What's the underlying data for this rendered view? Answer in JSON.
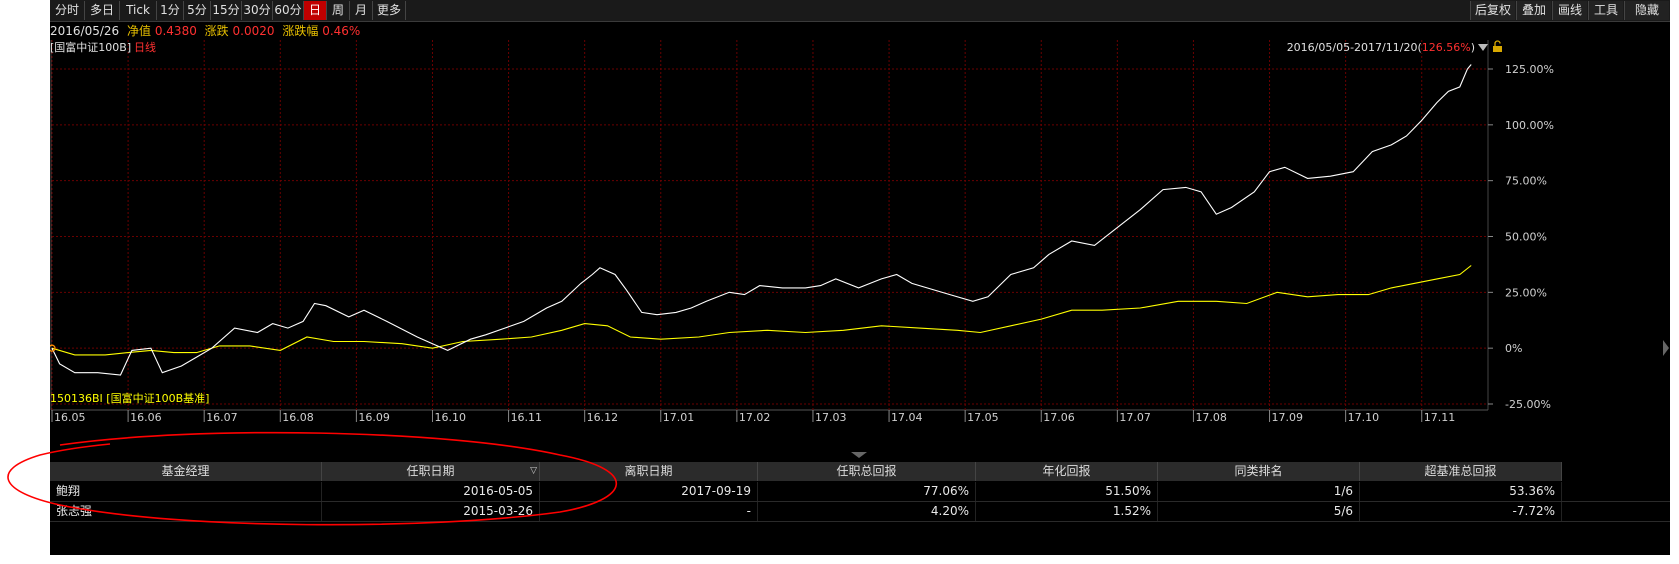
{
  "toolbar": {
    "left": [
      "分时",
      "多日",
      "Tick",
      "1分",
      "5分",
      "15分",
      "30分",
      "60分",
      "日",
      "周",
      "月",
      "更多"
    ],
    "active": "日",
    "right": [
      "后复权",
      "叠加",
      "画线",
      "工具",
      "隐藏"
    ]
  },
  "quote": {
    "date": "2016/05/26",
    "nav_label": "净值",
    "nav_value": "0.4380",
    "chg_label": "涨跌",
    "chg_value": "0.0020",
    "pct_label": "涨跌幅",
    "pct_value": "0.46%"
  },
  "chart_header": {
    "name": "[国富中证100B]",
    "period": "日线",
    "range_label": "2016/05/05-2017/11/20(",
    "range_value": "126.56%",
    "range_close": ")"
  },
  "colors": {
    "fund": "#ffffff",
    "benchmark": "#ffff00",
    "grid": "#6a0000",
    "up": "#ff3030"
  },
  "chart_data": {
    "type": "line",
    "ylim": [
      -25,
      125
    ],
    "yticks": [
      "125.00%",
      "100.00%",
      "75.00%",
      "50.00%",
      "25.00%",
      "0%",
      "-25.00%"
    ],
    "ytick_values": [
      125,
      100,
      75,
      50,
      25,
      0,
      -25
    ],
    "xticks": [
      "16.05",
      "16.06",
      "16.07",
      "16.08",
      "16.09",
      "16.10",
      "16.11",
      "16.12",
      "17.01",
      "17.02",
      "17.03",
      "17.04",
      "17.05",
      "17.06",
      "17.07",
      "17.08",
      "17.09",
      "17.10",
      "17.11"
    ],
    "xlim": [
      0,
      18.7
    ],
    "series": [
      {
        "name": "",
        "color": "#ffffff",
        "points": [
          [
            0,
            0
          ],
          [
            0.1,
            -7
          ],
          [
            0.3,
            -11
          ],
          [
            0.6,
            -11
          ],
          [
            0.9,
            -12
          ],
          [
            1.05,
            -1
          ],
          [
            1.3,
            0
          ],
          [
            1.45,
            -11
          ],
          [
            1.7,
            -8
          ],
          [
            1.9,
            -4
          ],
          [
            2.1,
            0
          ],
          [
            2.4,
            9
          ],
          [
            2.7,
            7
          ],
          [
            2.9,
            11
          ],
          [
            3.1,
            9
          ],
          [
            3.3,
            12
          ],
          [
            3.45,
            20
          ],
          [
            3.6,
            19
          ],
          [
            3.9,
            14
          ],
          [
            4.1,
            17
          ],
          [
            4.4,
            12
          ],
          [
            4.8,
            5
          ],
          [
            5.0,
            2
          ],
          [
            5.2,
            -1
          ],
          [
            5.5,
            4
          ],
          [
            5.7,
            6
          ],
          [
            5.95,
            9
          ],
          [
            6.2,
            12
          ],
          [
            6.5,
            18
          ],
          [
            6.7,
            21
          ],
          [
            6.95,
            29
          ],
          [
            7.1,
            33
          ],
          [
            7.2,
            36
          ],
          [
            7.4,
            33
          ],
          [
            7.55,
            26
          ],
          [
            7.75,
            16
          ],
          [
            7.95,
            15
          ],
          [
            8.2,
            16
          ],
          [
            8.4,
            18
          ],
          [
            8.6,
            21
          ],
          [
            8.9,
            25
          ],
          [
            9.1,
            24
          ],
          [
            9.3,
            28
          ],
          [
            9.6,
            27
          ],
          [
            9.9,
            27
          ],
          [
            10.1,
            28
          ],
          [
            10.3,
            31
          ],
          [
            10.6,
            27
          ],
          [
            10.9,
            31
          ],
          [
            11.1,
            33
          ],
          [
            11.3,
            29
          ],
          [
            11.6,
            26
          ],
          [
            11.8,
            24
          ],
          [
            12.1,
            21
          ],
          [
            12.3,
            23
          ],
          [
            12.6,
            33
          ],
          [
            12.9,
            36
          ],
          [
            13.1,
            42
          ],
          [
            13.4,
            48
          ],
          [
            13.7,
            46
          ],
          [
            14.0,
            54
          ],
          [
            14.3,
            62
          ],
          [
            14.6,
            71
          ],
          [
            14.9,
            72
          ],
          [
            15.1,
            70
          ],
          [
            15.3,
            60
          ],
          [
            15.5,
            63
          ],
          [
            15.8,
            70
          ],
          [
            16.0,
            79
          ],
          [
            16.2,
            81
          ],
          [
            16.5,
            76
          ],
          [
            16.8,
            77
          ],
          [
            17.1,
            79
          ],
          [
            17.35,
            88
          ],
          [
            17.6,
            91
          ],
          [
            17.8,
            95
          ],
          [
            18.0,
            102
          ],
          [
            18.2,
            110
          ],
          [
            18.35,
            115
          ],
          [
            18.5,
            117
          ],
          [
            18.6,
            125
          ],
          [
            18.65,
            127
          ]
        ]
      },
      {
        "name": "150136BI [国富中证100B基准]",
        "color": "#ffff00",
        "points": [
          [
            0,
            0
          ],
          [
            0.3,
            -3
          ],
          [
            0.7,
            -3
          ],
          [
            1.0,
            -2
          ],
          [
            1.3,
            -1
          ],
          [
            1.6,
            -2
          ],
          [
            1.9,
            -2
          ],
          [
            2.2,
            1
          ],
          [
            2.6,
            1
          ],
          [
            3.0,
            -1
          ],
          [
            3.35,
            5
          ],
          [
            3.7,
            3
          ],
          [
            4.1,
            3
          ],
          [
            4.6,
            2
          ],
          [
            5.0,
            0
          ],
          [
            5.4,
            3
          ],
          [
            5.9,
            4
          ],
          [
            6.3,
            5
          ],
          [
            6.7,
            8
          ],
          [
            7.0,
            11
          ],
          [
            7.3,
            10
          ],
          [
            7.6,
            5
          ],
          [
            8.0,
            4
          ],
          [
            8.5,
            5
          ],
          [
            8.9,
            7
          ],
          [
            9.4,
            8
          ],
          [
            9.9,
            7
          ],
          [
            10.4,
            8
          ],
          [
            10.9,
            10
          ],
          [
            11.4,
            9
          ],
          [
            11.9,
            8
          ],
          [
            12.2,
            7
          ],
          [
            12.6,
            10
          ],
          [
            13.0,
            13
          ],
          [
            13.4,
            17
          ],
          [
            13.8,
            17
          ],
          [
            14.3,
            18
          ],
          [
            14.8,
            21
          ],
          [
            15.3,
            21
          ],
          [
            15.7,
            20
          ],
          [
            16.1,
            25
          ],
          [
            16.5,
            23
          ],
          [
            16.9,
            24
          ],
          [
            17.3,
            24
          ],
          [
            17.6,
            27
          ],
          [
            17.9,
            29
          ],
          [
            18.2,
            31
          ],
          [
            18.5,
            33
          ],
          [
            18.65,
            37
          ]
        ]
      }
    ]
  },
  "table": {
    "headers": [
      "基金经理",
      "任职日期",
      "离职日期",
      "任职总回报",
      "年化回报",
      "同类排名",
      "超基准总回报"
    ],
    "sort_mark": "▽",
    "rows": [
      [
        "鲍翔",
        "2016-05-05",
        "2017-09-19",
        "77.06%",
        "51.50%",
        "1/6",
        "53.36%"
      ],
      [
        "张志强",
        "2015-03-26",
        "-",
        "4.20%",
        "1.52%",
        "5/6",
        "-7.72%"
      ]
    ]
  }
}
